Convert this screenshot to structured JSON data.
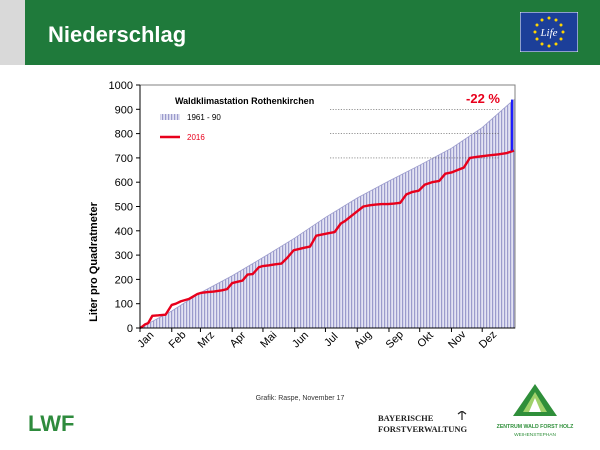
{
  "header": {
    "title": "Niederschlag"
  },
  "footer": {
    "credit": "Grafik: Raspe, November 17",
    "logo_lwf": "LWF",
    "logo_bfv_line1": "BAYERISCHE",
    "logo_bfv_line2": "FORSTVERWALTUNG",
    "logo_zwfh_line1": "ZENTRUM WALD FORST HOLZ",
    "logo_zwfh_line2": "WEIHENSTEPHAN",
    "logo_life": "Life"
  },
  "colors": {
    "header_green": "#1f7a3b",
    "area_fill": "#c9c9e6",
    "line_2016": "#e8001c",
    "diff_bar": "#1a1aff",
    "annotation": "#e8001c"
  },
  "chart_data": {
    "type": "area",
    "title": "Waldklimastation Rothenkirchen",
    "xlabel": "",
    "ylabel": "Liter pro Quadratmeter",
    "ylim": [
      0,
      1000
    ],
    "yticks": [
      0,
      100,
      200,
      300,
      400,
      500,
      600,
      700,
      800,
      900,
      1000
    ],
    "x_range_days": [
      0,
      366
    ],
    "month_labels": [
      "Jan",
      "Feb",
      "Mrz",
      "Apr",
      "Mai",
      "Jun",
      "Jul",
      "Aug",
      "Sep",
      "Okt",
      "Nov",
      "Dez"
    ],
    "month_starts_day": [
      0,
      31,
      59,
      90,
      120,
      151,
      181,
      212,
      243,
      273,
      304,
      334
    ],
    "legend_placement": "top-left",
    "grid": false,
    "series": [
      {
        "name": "1961 - 90",
        "kind": "area",
        "x": [
          0,
          31,
          59,
          90,
          120,
          151,
          181,
          212,
          243,
          273,
          304,
          334,
          365
        ],
        "y": [
          0,
          70,
          145,
          215,
          290,
          370,
          455,
          535,
          605,
          670,
          740,
          825,
          940
        ]
      },
      {
        "name": "2016",
        "kind": "line",
        "x": [
          0,
          2,
          5,
          8,
          12,
          18,
          25,
          31,
          35,
          40,
          48,
          52,
          56,
          60,
          66,
          72,
          80,
          85,
          90,
          95,
          100,
          105,
          110,
          116,
          120,
          126,
          132,
          138,
          144,
          150,
          155,
          160,
          166,
          172,
          178,
          184,
          190,
          196,
          200,
          206,
          212,
          218,
          224,
          230,
          236,
          242,
          248,
          254,
          260,
          266,
          272,
          278,
          285,
          292,
          298,
          304,
          310,
          316,
          322,
          330,
          340,
          350,
          358,
          365
        ],
        "y": [
          0,
          5,
          15,
          20,
          50,
          52,
          55,
          95,
          100,
          110,
          120,
          130,
          140,
          145,
          148,
          150,
          155,
          160,
          185,
          190,
          195,
          220,
          222,
          250,
          255,
          258,
          262,
          265,
          290,
          320,
          325,
          330,
          335,
          380,
          385,
          390,
          395,
          430,
          440,
          460,
          480,
          500,
          505,
          508,
          510,
          510,
          512,
          515,
          550,
          560,
          565,
          590,
          600,
          605,
          635,
          640,
          650,
          660,
          700,
          705,
          710,
          715,
          720,
          730
        ]
      }
    ],
    "annotations": [
      {
        "text": "-22 %",
        "x_day": 365,
        "y_from": 730,
        "y_to": 940
      }
    ]
  }
}
